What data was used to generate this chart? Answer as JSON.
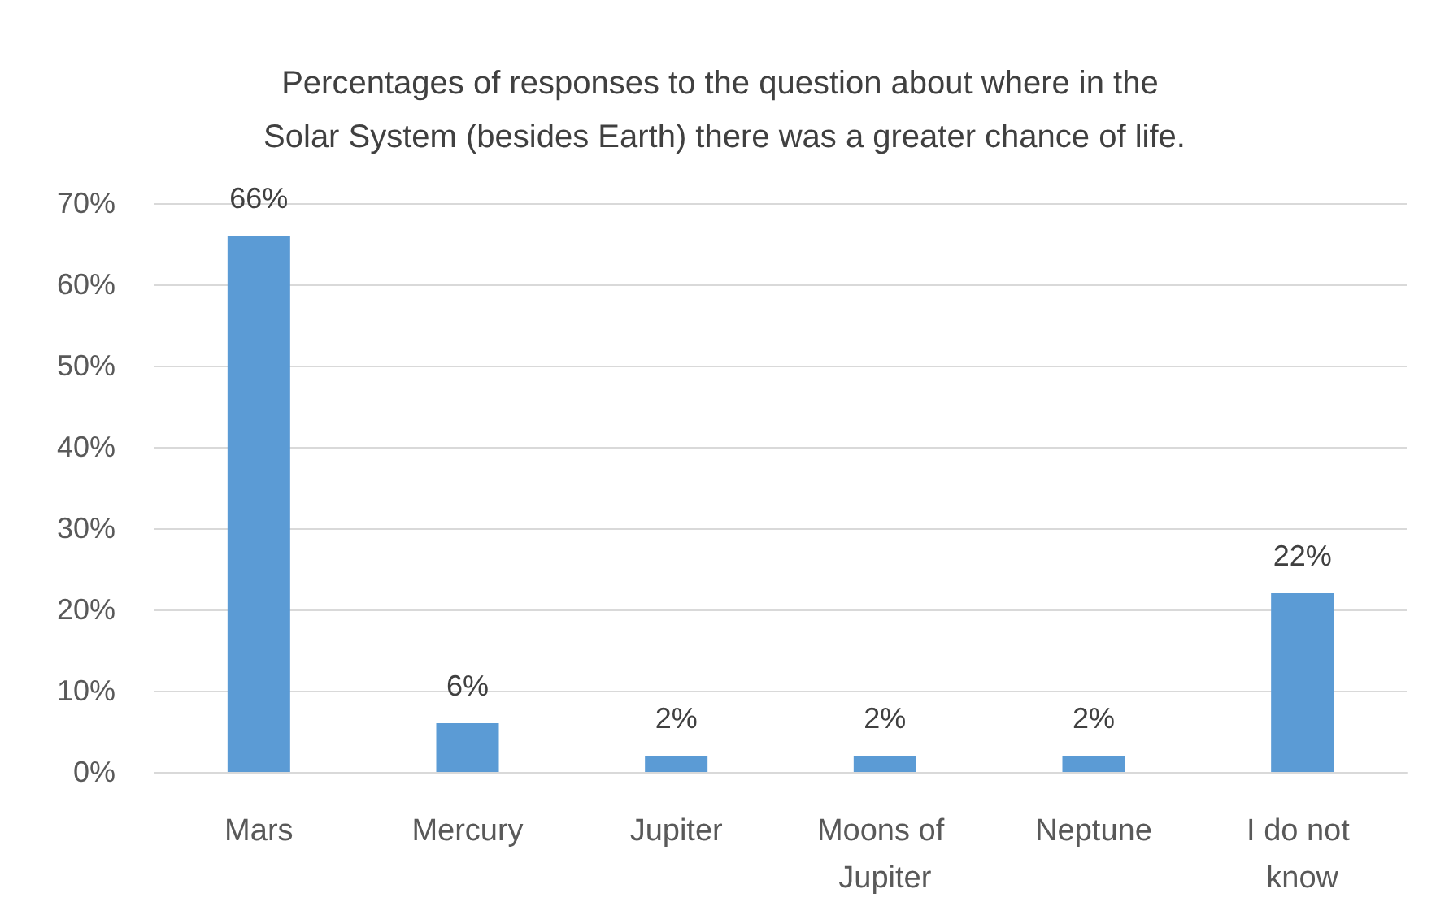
{
  "chart_data": {
    "type": "bar",
    "title": "Percentages of responses to the question about where in the Solar System (besides Earth) there was a greater chance of life.",
    "categories": [
      "Mars",
      "Mercury",
      "Jupiter",
      "Moons of Jupiter",
      "Neptune",
      "I do not know"
    ],
    "values": [
      66,
      6,
      2,
      2,
      2,
      22
    ],
    "value_labels": [
      "66%",
      "6%",
      "2%",
      "2%",
      "2%",
      "22%"
    ],
    "color": "#5b9bd5",
    "ylim": [
      0,
      70
    ],
    "yticks": [
      {
        "value": 0,
        "label": "0%"
      },
      {
        "value": 10,
        "label": "10%"
      },
      {
        "value": 20,
        "label": "20%"
      },
      {
        "value": 30,
        "label": "30%"
      },
      {
        "value": 40,
        "label": "40%"
      },
      {
        "value": 50,
        "label": "50%"
      },
      {
        "value": 60,
        "label": "60%"
      },
      {
        "value": 70,
        "label": "70%"
      }
    ],
    "grid": "y"
  }
}
